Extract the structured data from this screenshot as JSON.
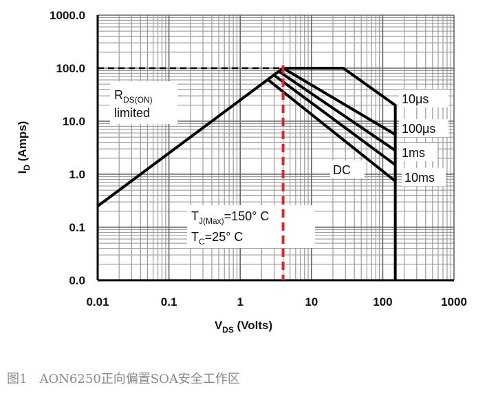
{
  "chart_data": {
    "type": "line",
    "log_x": true,
    "log_y": true,
    "grid": true,
    "xlabel": {
      "text": "V",
      "sub": "DS",
      "rest": " (Volts)"
    },
    "ylabel": {
      "text": "I",
      "sub": "D",
      "rest": " (Amps)"
    },
    "xlim": [
      0.01,
      1000
    ],
    "xticks": [
      0.01,
      0.1,
      1,
      10,
      100,
      1000
    ],
    "ylim": [
      0.01,
      1000
    ],
    "yticks": [
      {
        "value": 0.01,
        "label": "0.0"
      },
      {
        "value": 0.1,
        "label": "0.1"
      },
      {
        "value": 1,
        "label": "1.0"
      },
      {
        "value": 10,
        "label": "10.0"
      },
      {
        "value": 100,
        "label": "100.0"
      },
      {
        "value": 1000,
        "label": "1000.0"
      }
    ],
    "limit_line": {
      "color": "#000000",
      "x": [
        0.01,
        4
      ],
      "y": [
        0.25,
        100
      ]
    },
    "series": [
      {
        "name": "10μs",
        "color": "#000000",
        "x": [
          4,
          28,
          150,
          150
        ],
        "values": [
          100,
          100,
          20,
          0.01
        ]
      },
      {
        "name": "100μs",
        "color": "#000000",
        "x": [
          4,
          150
        ],
        "values": [
          100,
          5.6
        ]
      },
      {
        "name": "1ms",
        "color": "#000000",
        "x": [
          3.4,
          150
        ],
        "values": [
          89,
          2.8
        ]
      },
      {
        "name": "10ms",
        "color": "#000000",
        "x": [
          2.9,
          150
        ],
        "values": [
          76,
          1.5
        ]
      },
      {
        "name": "DC",
        "color": "#000000",
        "x": [
          2.4,
          150
        ],
        "values": [
          62,
          0.74
        ]
      }
    ],
    "hline": {
      "value": 100,
      "color": "#000000"
    },
    "vline": {
      "value": 4,
      "color": "#e0262b"
    },
    "rds_label": {
      "text": "R",
      "sub": "DS(ON)",
      "line2": "limited"
    },
    "tj_label": {
      "text": "T",
      "sub": "J(Max)",
      "rest": "=150° C"
    },
    "tc_label": {
      "text": "T",
      "sub": "C",
      "rest": "=25° C"
    },
    "caption": "图1　AON6250正向偏置SOA安全工作区"
  }
}
